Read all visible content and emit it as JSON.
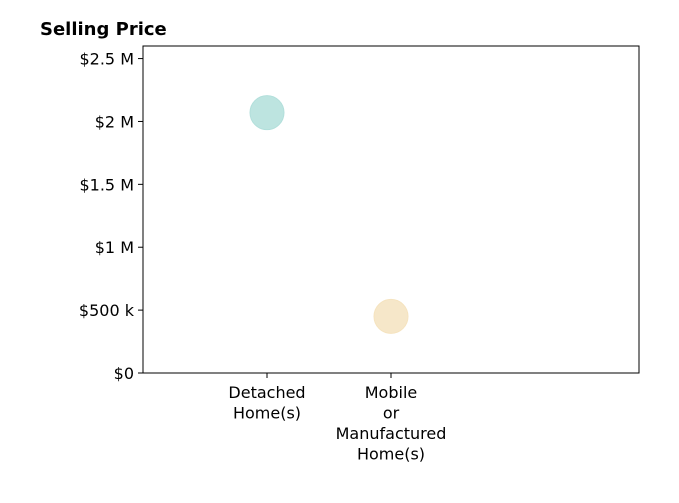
{
  "chart_data": {
    "type": "scatter",
    "title": "Selling Price",
    "xlabel": "",
    "ylabel": "",
    "categories": [
      [
        "Detached",
        "Home(s)"
      ],
      [
        "Mobile",
        "or",
        "Manufactured",
        "Home(s)"
      ]
    ],
    "y_ticks": [
      {
        "value": 0,
        "label": "$0"
      },
      {
        "value": 500000,
        "label": "$500 k"
      },
      {
        "value": 1000000,
        "label": "$1 M"
      },
      {
        "value": 1500000,
        "label": "$1.5 M"
      },
      {
        "value": 2000000,
        "label": "$2 M"
      },
      {
        "value": 2500000,
        "label": "$2.5 M"
      }
    ],
    "ylim": [
      0,
      2600000
    ],
    "grid": false,
    "points": [
      {
        "category_index": 0,
        "value": 2070000,
        "color": "#b2dfdb"
      },
      {
        "category_index": 1,
        "value": 450000,
        "color": "#f5e3bf"
      }
    ]
  }
}
